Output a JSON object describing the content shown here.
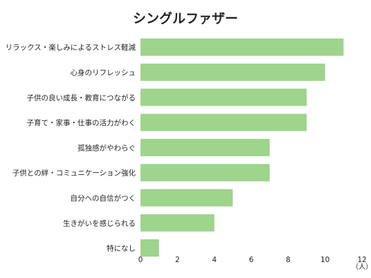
{
  "chart_data": {
    "type": "bar",
    "orientation": "horizontal",
    "title": "シングルファザー",
    "categories": [
      "リラックス・楽しみによるストレス軽減",
      "心身のリフレッシュ",
      "子供の良い成長・教育につながる",
      "子育て・家事・仕事の活力がわく",
      "孤独感がやわらぐ",
      "子供との絆・コミュニケーション強化",
      "自分への自信がつく",
      "生きがいを感じられる",
      "特になし"
    ],
    "values": [
      11,
      10,
      9,
      9,
      7,
      7,
      5,
      4,
      1
    ],
    "xlim": [
      0,
      12
    ],
    "xticks": [
      "0",
      "2",
      "4",
      "6",
      "8",
      "10",
      "12"
    ],
    "x_unit": "（人）",
    "grid": false,
    "legend": "none",
    "bar_color": "#9ed48c"
  }
}
